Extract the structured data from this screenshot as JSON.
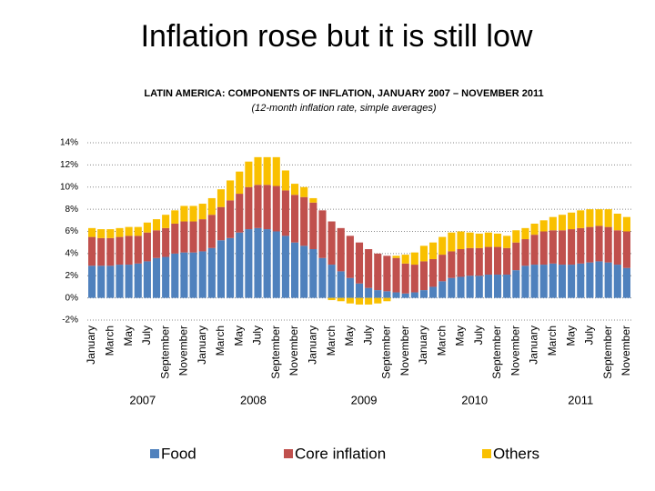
{
  "chart_data": {
    "type": "stacked-bar",
    "title": "Inflation rose but it is still low",
    "subtitle": "LATIN AMERICA: COMPONENTS OF INFLATION, JANUARY 2007 – NOVEMBER 2011",
    "note": "(12-month inflation rate, simple averages)",
    "categories": [
      "January",
      null,
      "March",
      null,
      "May",
      null,
      "July",
      null,
      "September",
      null,
      "November",
      null,
      "January",
      null,
      "March",
      null,
      "May",
      null,
      "July",
      null,
      "September",
      null,
      "November",
      null,
      "January",
      null,
      "March",
      null,
      "May",
      null,
      "July",
      null,
      "September",
      null,
      "November",
      null,
      "January",
      null,
      "March",
      null,
      "May",
      null,
      "July",
      null,
      "September",
      null,
      "November",
      null,
      "January",
      null,
      "March",
      null,
      "May",
      null,
      "July",
      null,
      "September",
      null,
      "November"
    ],
    "year_labels": [
      "2007",
      "2008",
      "2009",
      "2010",
      "2011"
    ],
    "series": [
      {
        "name": "Food",
        "color": "#4f81bd",
        "values": [
          2.9,
          2.9,
          2.9,
          3.0,
          3.0,
          3.1,
          3.3,
          3.6,
          3.7,
          4.0,
          4.1,
          4.1,
          4.2,
          4.5,
          5.2,
          5.4,
          5.9,
          6.2,
          6.3,
          6.2,
          6.0,
          5.6,
          5.0,
          4.7,
          4.4,
          3.6,
          3.0,
          2.4,
          1.8,
          1.3,
          0.9,
          0.7,
          0.6,
          0.5,
          0.4,
          0.5,
          0.7,
          1.0,
          1.5,
          1.8,
          1.9,
          2.0,
          2.0,
          2.1,
          2.1,
          2.1,
          2.5,
          2.9,
          3.0,
          3.0,
          3.1,
          3.0,
          3.0,
          3.1,
          3.2,
          3.3,
          3.2,
          3.0,
          2.7
        ]
      },
      {
        "name": "Core inflation",
        "color": "#c0504d",
        "values": [
          2.6,
          2.5,
          2.5,
          2.5,
          2.6,
          2.5,
          2.6,
          2.5,
          2.6,
          2.7,
          2.8,
          2.8,
          2.9,
          3.0,
          3.0,
          3.4,
          3.5,
          3.8,
          3.9,
          4.0,
          4.1,
          4.1,
          4.3,
          4.4,
          4.2,
          4.3,
          3.9,
          3.9,
          3.8,
          3.7,
          3.5,
          3.3,
          3.2,
          3.1,
          2.7,
          2.5,
          2.6,
          2.5,
          2.4,
          2.4,
          2.5,
          2.5,
          2.5,
          2.5,
          2.5,
          2.4,
          2.5,
          2.4,
          2.7,
          3.0,
          3.0,
          3.1,
          3.2,
          3.2,
          3.2,
          3.2,
          3.2,
          3.1,
          3.3
        ]
      },
      {
        "name": "Others",
        "color": "#f9c000",
        "values": [
          0.8,
          0.8,
          0.8,
          0.8,
          0.8,
          0.8,
          0.9,
          1.0,
          1.2,
          1.2,
          1.4,
          1.4,
          1.4,
          1.5,
          1.6,
          1.8,
          2.0,
          2.3,
          2.5,
          2.5,
          2.6,
          1.8,
          1.0,
          0.9,
          0.4,
          0.0,
          -0.2,
          -0.3,
          -0.5,
          -0.6,
          -0.6,
          -0.5,
          -0.3,
          0.2,
          0.8,
          1.1,
          1.4,
          1.5,
          1.6,
          1.7,
          1.6,
          1.4,
          1.3,
          1.3,
          1.2,
          1.1,
          1.1,
          1.0,
          1.0,
          1.0,
          1.2,
          1.4,
          1.5,
          1.6,
          1.6,
          1.5,
          1.6,
          1.5,
          1.3
        ]
      }
    ],
    "ylim": [
      -2,
      14
    ],
    "yticks": [
      {
        "value": -2,
        "label": "-2%"
      },
      {
        "value": 0,
        "label": "0%"
      },
      {
        "value": 2,
        "label": "2%"
      },
      {
        "value": 4,
        "label": "4%"
      },
      {
        "value": 6,
        "label": "6%"
      },
      {
        "value": 8,
        "label": "8%"
      },
      {
        "value": 10,
        "label": "10%"
      },
      {
        "value": 12,
        "label": "12%"
      },
      {
        "value": 14,
        "label": "14%"
      }
    ],
    "grid": true
  }
}
